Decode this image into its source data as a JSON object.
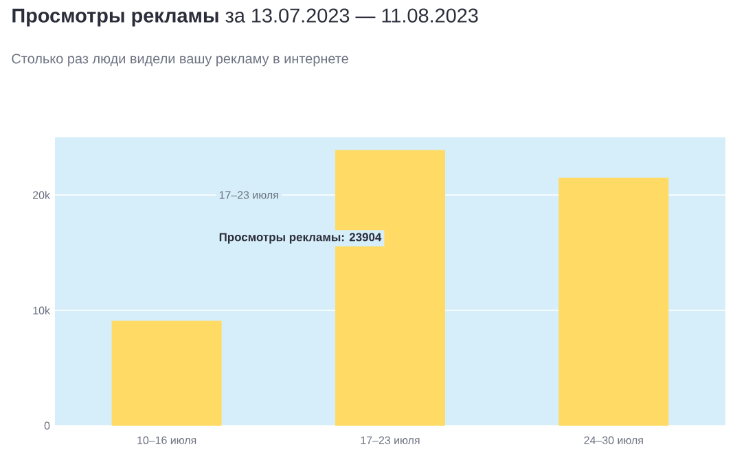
{
  "chart_data": {
    "type": "bar",
    "title": "**Просмотры рекламы** за 13.07.2023 — 11.08.2023",
    "subtitle": "Столько раз люди видели вашу рекламу в интернете",
    "categories": [
      "10–16 июля",
      "17–23 июля",
      "24–30 июля"
    ],
    "values": [
      9100,
      23904,
      21500
    ],
    "color": "#ffdb66",
    "ylim": [
      0,
      25000
    ],
    "yticks": [
      {
        "value": 0,
        "label": "0"
      },
      {
        "value": 10000,
        "label": "10k"
      },
      {
        "value": 20000,
        "label": "20k"
      }
    ],
    "grid": "y",
    "annotations": [
      "17–23 июля",
      "Просмотры рекламы: 23904"
    ]
  }
}
